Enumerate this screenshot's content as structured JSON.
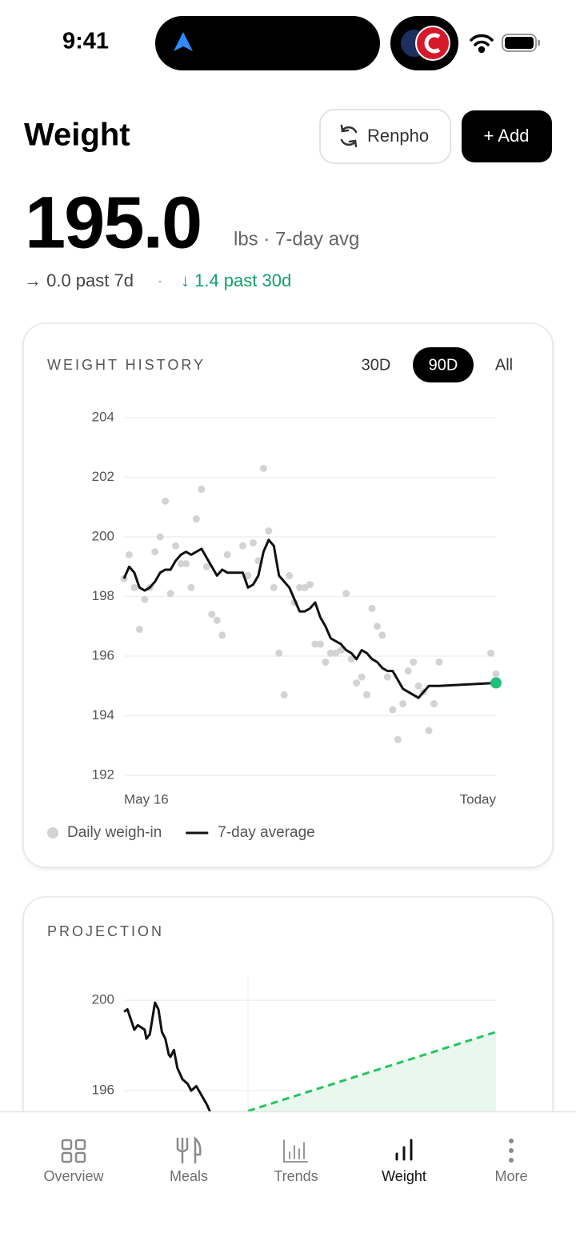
{
  "status_bar": {
    "time": "9:41"
  },
  "header": {
    "title": "Weight",
    "sync_button": "Renpho",
    "add_button": "+ Add"
  },
  "summary": {
    "value": "195.0",
    "unit": "lbs · 7-day avg",
    "change_7d": "→ 0.0 past 7d",
    "change_30d": "↓ 1.4 past 30d"
  },
  "weight_history": {
    "title": "WEIGHT HISTORY",
    "ranges": [
      "30D",
      "90D",
      "All"
    ],
    "selected": 1,
    "chart_data": {
      "type": "line",
      "xlim": [
        0,
        72
      ],
      "xticks": [
        {
          "value": 0,
          "label": "May 16"
        },
        {
          "value": 72,
          "label": "Today"
        }
      ],
      "ylim": [
        192,
        204
      ],
      "yticks": [
        192,
        194,
        196,
        198,
        200,
        202,
        204
      ],
      "grid": true,
      "legend": "bottom-left",
      "series": [
        {
          "name": "Daily weigh-in",
          "type": "scatter",
          "color": "#d3d3d3",
          "x": [
            0,
            1,
            2,
            3,
            4,
            5,
            6,
            7,
            8,
            9,
            10,
            11,
            12,
            13,
            14,
            15,
            16,
            17,
            18,
            19,
            20,
            23,
            24,
            25,
            26,
            27,
            28,
            29,
            30,
            31,
            32,
            33,
            34,
            35,
            36,
            37,
            38,
            39,
            40,
            41,
            42,
            43,
            44,
            45,
            46,
            47,
            48,
            49,
            50,
            51,
            52,
            53,
            54,
            55,
            56,
            57,
            58,
            59,
            60,
            61,
            71,
            72
          ],
          "values": [
            198.6,
            199.4,
            198.3,
            196.9,
            197.9,
            198.3,
            199.5,
            200.0,
            201.2,
            198.1,
            199.7,
            199.1,
            199.1,
            198.3,
            200.6,
            201.6,
            199.0,
            197.4,
            197.2,
            196.7,
            199.4,
            199.7,
            198.7,
            199.8,
            199.2,
            202.3,
            200.2,
            198.3,
            196.1,
            194.7,
            198.7,
            197.8,
            198.3,
            198.3,
            198.4,
            196.4,
            196.4,
            195.8,
            196.1,
            196.1,
            196.2,
            198.1,
            195.9,
            195.1,
            195.3,
            194.7,
            197.6,
            197.0,
            196.7,
            195.3,
            194.2,
            193.2,
            194.4,
            195.5,
            195.8,
            195.0,
            194.8,
            193.5,
            194.4,
            195.8,
            196.1,
            195.4
          ]
        },
        {
          "name": "7-day average",
          "type": "line",
          "color": "#111111",
          "end_color": "#1fbf7a",
          "x": [
            0,
            1,
            2,
            3,
            4,
            5,
            6,
            7,
            8,
            9,
            10,
            11,
            12,
            13,
            14,
            15,
            16,
            17,
            18,
            19,
            20,
            23,
            24,
            25,
            26,
            27,
            28,
            29,
            30,
            31,
            32,
            33,
            34,
            35,
            36,
            37,
            38,
            39,
            40,
            41,
            42,
            43,
            44,
            45,
            46,
            47,
            48,
            49,
            50,
            51,
            52,
            53,
            54,
            55,
            56,
            57,
            58,
            59,
            60,
            61,
            72
          ],
          "values": [
            198.6,
            199.0,
            198.8,
            198.3,
            198.2,
            198.3,
            198.5,
            198.8,
            198.9,
            198.9,
            199.2,
            199.4,
            199.5,
            199.4,
            199.5,
            199.6,
            199.3,
            199.0,
            198.7,
            198.9,
            198.8,
            198.8,
            198.3,
            198.4,
            198.7,
            199.5,
            199.9,
            199.7,
            198.7,
            198.5,
            198.3,
            197.9,
            197.5,
            197.5,
            197.6,
            197.8,
            197.3,
            197.0,
            196.6,
            196.5,
            196.4,
            196.2,
            196.1,
            195.9,
            196.2,
            196.1,
            195.9,
            195.8,
            195.6,
            195.5,
            195.5,
            195.2,
            194.9,
            194.8,
            194.7,
            194.6,
            194.8,
            195.0,
            195.0,
            195.0,
            195.1
          ]
        }
      ]
    }
  },
  "projection": {
    "title": "PROJECTION",
    "chart_data": {
      "type": "line",
      "xlim": [
        0,
        216
      ],
      "xmarker": 72,
      "ylim": [
        192,
        201
      ],
      "yticks": [
        196,
        200
      ],
      "grid": true,
      "series": [
        {
          "type": "line",
          "color": "#111111",
          "x": [
            0,
            2,
            6,
            8,
            12,
            13,
            15,
            18,
            20,
            22,
            24,
            26,
            27,
            29,
            31,
            34,
            37,
            39,
            42,
            45,
            48,
            51
          ],
          "values": [
            199.5,
            199.6,
            198.7,
            198.9,
            198.7,
            198.3,
            198.5,
            199.9,
            199.6,
            198.6,
            198.3,
            197.6,
            197.5,
            197.8,
            197.0,
            196.5,
            196.3,
            196.0,
            196.2,
            195.8,
            195.4,
            194.9
          ]
        },
        {
          "type": "line",
          "color": "#22c55e",
          "dashed": true,
          "fill": "#e9f8ee",
          "x": [
            72,
            216
          ],
          "values": [
            195.1,
            198.6
          ]
        }
      ]
    }
  },
  "tab_bar": {
    "tabs": [
      "Overview",
      "Meals",
      "Trends",
      "Weight",
      "More"
    ],
    "active": 3
  }
}
